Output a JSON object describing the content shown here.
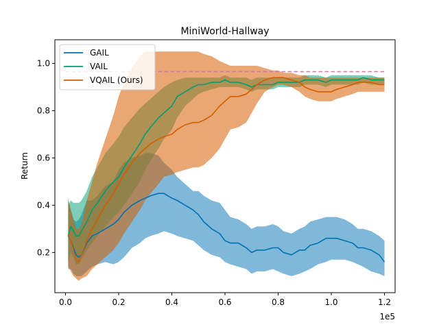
{
  "chart_data": {
    "type": "line",
    "title": "MiniWorld-Hallway",
    "xlabel": "",
    "ylabel": "Return",
    "x_offset_text": "1e5",
    "xlim": [
      -0.04,
      1.24
    ],
    "ylim": [
      0.03,
      1.1
    ],
    "x_ticks": [
      0.0,
      0.2,
      0.4,
      0.6,
      0.8,
      1.0,
      1.2
    ],
    "x_tick_labels": [
      "0.0",
      "0.2",
      "0.4",
      "0.6",
      "0.8",
      "1.0",
      "1.2"
    ],
    "y_ticks": [
      0.2,
      0.4,
      0.6,
      0.8,
      1.0
    ],
    "y_tick_labels": [
      "0.2",
      "0.4",
      "0.6",
      "0.8",
      "1.0"
    ],
    "grid": false,
    "legend_position": "upper-left",
    "reference_line": {
      "y": 0.965,
      "style": "dashed",
      "color": "#cc79a7"
    },
    "series": [
      {
        "name": "GAIL",
        "color": "#0072b2",
        "x": [
          0.01,
          0.02,
          0.03,
          0.04,
          0.05,
          0.06,
          0.08,
          0.1,
          0.12,
          0.15,
          0.18,
          0.2,
          0.22,
          0.25,
          0.28,
          0.3,
          0.32,
          0.35,
          0.37,
          0.4,
          0.42,
          0.45,
          0.48,
          0.5,
          0.52,
          0.55,
          0.58,
          0.6,
          0.62,
          0.65,
          0.68,
          0.7,
          0.72,
          0.75,
          0.78,
          0.8,
          0.82,
          0.85,
          0.88,
          0.9,
          0.92,
          0.95,
          0.98,
          1.0,
          1.02,
          1.05,
          1.08,
          1.1,
          1.12,
          1.15,
          1.18,
          1.2
        ],
        "mean": [
          0.27,
          0.25,
          0.22,
          0.19,
          0.18,
          0.19,
          0.24,
          0.27,
          0.28,
          0.3,
          0.32,
          0.34,
          0.37,
          0.4,
          0.42,
          0.43,
          0.44,
          0.45,
          0.45,
          0.43,
          0.42,
          0.4,
          0.38,
          0.36,
          0.33,
          0.3,
          0.28,
          0.25,
          0.24,
          0.24,
          0.22,
          0.2,
          0.21,
          0.21,
          0.22,
          0.22,
          0.2,
          0.19,
          0.21,
          0.21,
          0.23,
          0.24,
          0.26,
          0.26,
          0.26,
          0.25,
          0.24,
          0.22,
          0.22,
          0.21,
          0.19,
          0.16
        ],
        "upper": [
          0.43,
          0.38,
          0.34,
          0.33,
          0.34,
          0.36,
          0.42,
          0.42,
          0.44,
          0.48,
          0.5,
          0.55,
          0.58,
          0.6,
          0.61,
          0.62,
          0.62,
          0.61,
          0.58,
          0.55,
          0.52,
          0.49,
          0.46,
          0.46,
          0.44,
          0.42,
          0.41,
          0.38,
          0.35,
          0.34,
          0.32,
          0.3,
          0.31,
          0.31,
          0.32,
          0.31,
          0.29,
          0.28,
          0.3,
          0.31,
          0.33,
          0.34,
          0.35,
          0.35,
          0.35,
          0.34,
          0.32,
          0.3,
          0.3,
          0.29,
          0.27,
          0.25
        ],
        "lower": [
          0.13,
          0.13,
          0.11,
          0.1,
          0.1,
          0.1,
          0.12,
          0.14,
          0.15,
          0.16,
          0.15,
          0.16,
          0.18,
          0.22,
          0.24,
          0.26,
          0.27,
          0.28,
          0.29,
          0.28,
          0.27,
          0.26,
          0.25,
          0.23,
          0.21,
          0.19,
          0.18,
          0.16,
          0.15,
          0.14,
          0.13,
          0.11,
          0.12,
          0.12,
          0.13,
          0.12,
          0.11,
          0.1,
          0.11,
          0.12,
          0.13,
          0.15,
          0.16,
          0.17,
          0.17,
          0.17,
          0.16,
          0.15,
          0.14,
          0.12,
          0.11,
          0.1
        ]
      },
      {
        "name": "VAIL",
        "color": "#009e73",
        "x": [
          0.01,
          0.02,
          0.03,
          0.04,
          0.05,
          0.06,
          0.08,
          0.1,
          0.12,
          0.15,
          0.18,
          0.2,
          0.22,
          0.25,
          0.28,
          0.3,
          0.32,
          0.35,
          0.37,
          0.4,
          0.42,
          0.45,
          0.48,
          0.5,
          0.52,
          0.55,
          0.58,
          0.6,
          0.62,
          0.65,
          0.68,
          0.7,
          0.72,
          0.75,
          0.78,
          0.8,
          0.82,
          0.85,
          0.88,
          0.9,
          0.92,
          0.95,
          0.98,
          1.0,
          1.02,
          1.05,
          1.08,
          1.1,
          1.12,
          1.15,
          1.18,
          1.2
        ],
        "mean": [
          0.27,
          0.31,
          0.29,
          0.27,
          0.27,
          0.29,
          0.33,
          0.38,
          0.41,
          0.46,
          0.5,
          0.52,
          0.56,
          0.61,
          0.66,
          0.7,
          0.73,
          0.77,
          0.79,
          0.82,
          0.86,
          0.88,
          0.9,
          0.91,
          0.91,
          0.92,
          0.92,
          0.93,
          0.92,
          0.92,
          0.91,
          0.9,
          0.91,
          0.91,
          0.91,
          0.92,
          0.92,
          0.92,
          0.92,
          0.93,
          0.93,
          0.93,
          0.92,
          0.93,
          0.93,
          0.93,
          0.93,
          0.93,
          0.94,
          0.93,
          0.93,
          0.93
        ],
        "upper": [
          0.4,
          0.42,
          0.41,
          0.41,
          0.41,
          0.42,
          0.46,
          0.52,
          0.56,
          0.62,
          0.66,
          0.69,
          0.73,
          0.77,
          0.81,
          0.83,
          0.85,
          0.88,
          0.9,
          0.92,
          0.93,
          0.94,
          0.94,
          0.94,
          0.94,
          0.94,
          0.94,
          0.95,
          0.94,
          0.94,
          0.94,
          0.93,
          0.94,
          0.94,
          0.94,
          0.94,
          0.94,
          0.94,
          0.94,
          0.95,
          0.95,
          0.95,
          0.94,
          0.95,
          0.95,
          0.95,
          0.95,
          0.95,
          0.95,
          0.95,
          0.94,
          0.94
        ],
        "lower": [
          0.16,
          0.2,
          0.18,
          0.15,
          0.15,
          0.17,
          0.21,
          0.24,
          0.27,
          0.31,
          0.35,
          0.37,
          0.4,
          0.45,
          0.5,
          0.55,
          0.59,
          0.64,
          0.68,
          0.72,
          0.77,
          0.82,
          0.85,
          0.87,
          0.88,
          0.89,
          0.9,
          0.9,
          0.9,
          0.9,
          0.89,
          0.88,
          0.89,
          0.89,
          0.89,
          0.9,
          0.9,
          0.9,
          0.9,
          0.91,
          0.91,
          0.91,
          0.9,
          0.91,
          0.91,
          0.91,
          0.91,
          0.91,
          0.92,
          0.91,
          0.91,
          0.91
        ]
      },
      {
        "name": "VQAIL (Ours)",
        "color": "#d55e00",
        "x": [
          0.01,
          0.02,
          0.03,
          0.04,
          0.05,
          0.06,
          0.08,
          0.1,
          0.12,
          0.15,
          0.18,
          0.2,
          0.22,
          0.25,
          0.28,
          0.3,
          0.32,
          0.35,
          0.37,
          0.4,
          0.42,
          0.45,
          0.48,
          0.5,
          0.52,
          0.55,
          0.58,
          0.6,
          0.62,
          0.65,
          0.68,
          0.7,
          0.72,
          0.75,
          0.78,
          0.8,
          0.82,
          0.85,
          0.88,
          0.9,
          0.92,
          0.95,
          0.98,
          1.0,
          1.02,
          1.05,
          1.08,
          1.1,
          1.12,
          1.15,
          1.18,
          1.2
        ],
        "mean": [
          0.28,
          0.25,
          0.21,
          0.17,
          0.16,
          0.19,
          0.25,
          0.3,
          0.34,
          0.4,
          0.45,
          0.49,
          0.53,
          0.58,
          0.62,
          0.64,
          0.66,
          0.68,
          0.69,
          0.7,
          0.72,
          0.74,
          0.75,
          0.75,
          0.76,
          0.78,
          0.82,
          0.84,
          0.86,
          0.86,
          0.87,
          0.89,
          0.91,
          0.93,
          0.94,
          0.94,
          0.94,
          0.93,
          0.92,
          0.9,
          0.89,
          0.88,
          0.88,
          0.88,
          0.89,
          0.9,
          0.91,
          0.92,
          0.92,
          0.92,
          0.91,
          0.91
        ],
        "upper": [
          0.42,
          0.38,
          0.34,
          0.3,
          0.3,
          0.32,
          0.42,
          0.5,
          0.58,
          0.68,
          0.78,
          0.86,
          0.92,
          0.98,
          1.03,
          1.05,
          1.05,
          1.05,
          1.05,
          1.05,
          1.05,
          1.05,
          1.05,
          1.05,
          1.04,
          1.03,
          1.01,
          1.0,
          0.99,
          0.99,
          0.99,
          0.99,
          0.99,
          0.98,
          0.97,
          0.97,
          0.96,
          0.96,
          0.95,
          0.95,
          0.94,
          0.94,
          0.94,
          0.94,
          0.94,
          0.94,
          0.94,
          0.94,
          0.94,
          0.94,
          0.94,
          0.94
        ],
        "lower": [
          0.14,
          0.12,
          0.1,
          0.09,
          0.08,
          0.09,
          0.1,
          0.13,
          0.15,
          0.18,
          0.21,
          0.24,
          0.28,
          0.33,
          0.38,
          0.42,
          0.45,
          0.49,
          0.52,
          0.53,
          0.54,
          0.55,
          0.56,
          0.56,
          0.57,
          0.6,
          0.64,
          0.68,
          0.72,
          0.73,
          0.75,
          0.79,
          0.83,
          0.88,
          0.9,
          0.91,
          0.91,
          0.9,
          0.88,
          0.86,
          0.85,
          0.84,
          0.84,
          0.84,
          0.85,
          0.86,
          0.87,
          0.88,
          0.88,
          0.88,
          0.88,
          0.88
        ]
      }
    ]
  }
}
